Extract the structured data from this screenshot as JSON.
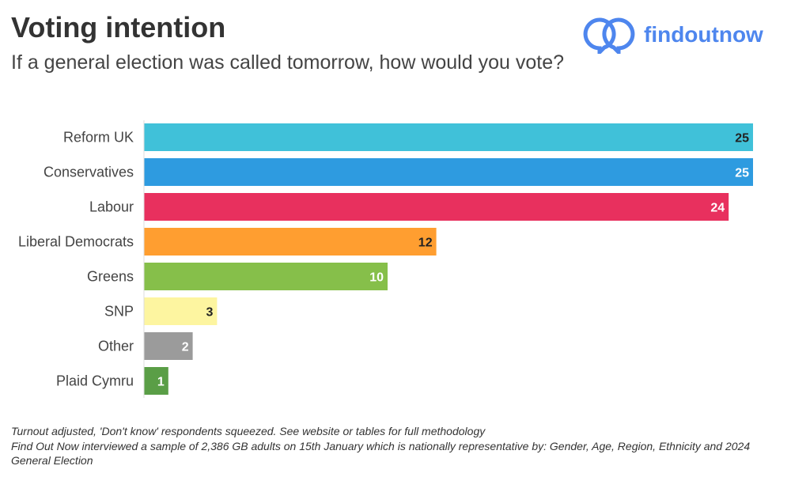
{
  "logo": {
    "text": "findoutnow",
    "color": "#4E86EE"
  },
  "chart_data": {
    "type": "bar",
    "orientation": "horizontal",
    "title": "Voting intention",
    "subtitle": "If a general election was called tomorrow, how would you vote?",
    "categories": [
      "Reform UK",
      "Conservatives",
      "Labour",
      "Liberal Democrats",
      "Greens",
      "SNP",
      "Other",
      "Plaid Cymru"
    ],
    "values": [
      25,
      25,
      24,
      12,
      10,
      3,
      2,
      1
    ],
    "colors": [
      "#40C1D9",
      "#2E9BE0",
      "#E8305E",
      "#FF9E30",
      "#86BF4A",
      "#FDF5A0",
      "#9B9B9B",
      "#5A9E46"
    ],
    "label_colors": [
      "#222222",
      "#ffffff",
      "#ffffff",
      "#222222",
      "#ffffff",
      "#222222",
      "#ffffff",
      "#ffffff"
    ],
    "xlim": [
      0,
      25
    ],
    "grid": false,
    "xlabel": "",
    "ylabel": ""
  },
  "notes": [
    "Turnout adjusted, 'Don't know' respondents squeezed. See website or tables for full methodology",
    "Find Out Now interviewed a sample of 2,386 GB adults on 15th January which is nationally representative by: Gender, Age, Region, Ethnicity and 2024 General Election"
  ]
}
